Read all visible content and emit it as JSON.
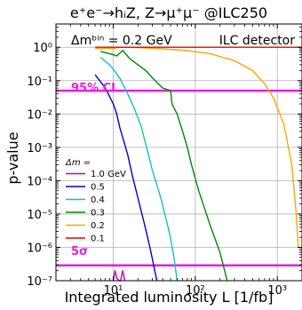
{
  "chart_data": {
    "type": "line",
    "title": "e⁺e⁻→hᵢZ, Z→μ⁺μ⁻  @ILC250",
    "xlabel": "Integrated luminosity L [1/fb]",
    "ylabel": "p-value",
    "x_scale": "log",
    "y_scale": "log",
    "xlim": [
      2,
      2000
    ],
    "ylim": [
      1e-07,
      5
    ],
    "x_ticks": [
      {
        "v": 10,
        "label": "10¹"
      },
      {
        "v": 100,
        "label": "10²"
      },
      {
        "v": 1000,
        "label": "10³"
      }
    ],
    "y_ticks": [
      {
        "v": 1e-07,
        "label": "10⁻⁷"
      },
      {
        "v": 1e-06,
        "label": "10⁻⁶"
      },
      {
        "v": 1e-05,
        "label": "10⁻⁵"
      },
      {
        "v": 0.0001,
        "label": "10⁻⁴"
      },
      {
        "v": 0.001,
        "label": "10⁻³"
      },
      {
        "v": 0.01,
        "label": "10⁻²"
      },
      {
        "v": 0.1,
        "label": "10⁻¹"
      },
      {
        "v": 1,
        "label": "10⁰"
      }
    ],
    "grid": true,
    "annotations": {
      "bin": "Δmᵇⁱⁿ = 0.2 GeV",
      "detector": "ILC detector",
      "cl95": "95% CL",
      "five_sigma": "5σ"
    },
    "reference_lines": [
      {
        "name": "95% CL",
        "y": 0.05,
        "color": "#e71de7"
      },
      {
        "name": "5σ",
        "y": 2.87e-07,
        "color": "#e71de7"
      }
    ],
    "legend": {
      "title": "Δm =",
      "placement": "center-left"
    },
    "series": [
      {
        "name": "1.0 GeV",
        "color": "#bf00bf",
        "points": [
          [
            10,
            1e-07
          ],
          [
            10.5,
            2e-07
          ],
          [
            11,
            1.2e-07
          ],
          [
            11.8,
            1e-07
          ],
          [
            12.3,
            1e-07
          ],
          [
            13,
            2e-07
          ],
          [
            13.8,
            1e-07
          ]
        ]
      },
      {
        "name": "0.5",
        "color": "#0000cc",
        "points": [
          [
            6,
            0.15
          ],
          [
            8,
            0.06
          ],
          [
            10,
            0.02
          ],
          [
            11,
            0.01
          ],
          [
            12,
            0.004
          ],
          [
            13,
            0.002
          ],
          [
            15,
            0.0006
          ],
          [
            17,
            0.00015
          ],
          [
            20,
            3e-05
          ],
          [
            24,
            5e-06
          ],
          [
            28,
            1e-06
          ],
          [
            31,
            3e-07
          ],
          [
            34,
            1e-07
          ]
        ]
      },
      {
        "name": "0.4",
        "color": "#16c0c0",
        "points": [
          [
            7,
            0.5
          ],
          [
            9,
            0.3
          ],
          [
            10,
            0.22
          ],
          [
            12,
            0.12
          ],
          [
            13,
            0.08
          ],
          [
            15,
            0.04
          ],
          [
            18,
            0.015
          ],
          [
            22,
            0.004
          ],
          [
            26,
            0.0008
          ],
          [
            30,
            0.0002
          ],
          [
            38,
            3e-05
          ],
          [
            48,
            3e-06
          ],
          [
            55,
            5e-07
          ],
          [
            60,
            1e-07
          ]
        ]
      },
      {
        "name": "0.3",
        "color": "#008800",
        "points": [
          [
            7,
            0.75
          ],
          [
            10,
            0.6
          ],
          [
            11,
            0.55
          ],
          [
            13,
            0.8
          ],
          [
            16,
            0.45
          ],
          [
            20,
            0.3
          ],
          [
            25,
            0.2
          ],
          [
            30,
            0.12
          ],
          [
            40,
            0.06
          ],
          [
            50,
            0.05
          ],
          [
            52,
            0.02
          ],
          [
            60,
            0.01
          ],
          [
            70,
            0.003
          ],
          [
            80,
            0.001
          ],
          [
            90,
            0.0003
          ],
          [
            110,
            5e-05
          ],
          [
            150,
            5e-06
          ],
          [
            200,
            7e-07
          ],
          [
            245,
            1e-07
          ]
        ]
      },
      {
        "name": "0.2",
        "color": "#ffa500",
        "points": [
          [
            6,
            0.92
          ],
          [
            10,
            0.92
          ],
          [
            12,
            1.0
          ],
          [
            20,
            0.98
          ],
          [
            40,
            0.9
          ],
          [
            80,
            0.8
          ],
          [
            150,
            0.65
          ],
          [
            300,
            0.4
          ],
          [
            500,
            0.2
          ],
          [
            700,
            0.08
          ],
          [
            900,
            0.03
          ],
          [
            1200,
            0.005
          ],
          [
            1500,
            0.0003
          ],
          [
            1700,
            1e-05
          ],
          [
            1800,
            1e-06
          ]
        ]
      },
      {
        "name": "0.1",
        "color": "#ee0000",
        "points": [
          [
            6,
            1.0
          ],
          [
            12,
            1.0
          ],
          [
            100,
            1.0
          ],
          [
            2000,
            1.0
          ]
        ]
      }
    ]
  }
}
